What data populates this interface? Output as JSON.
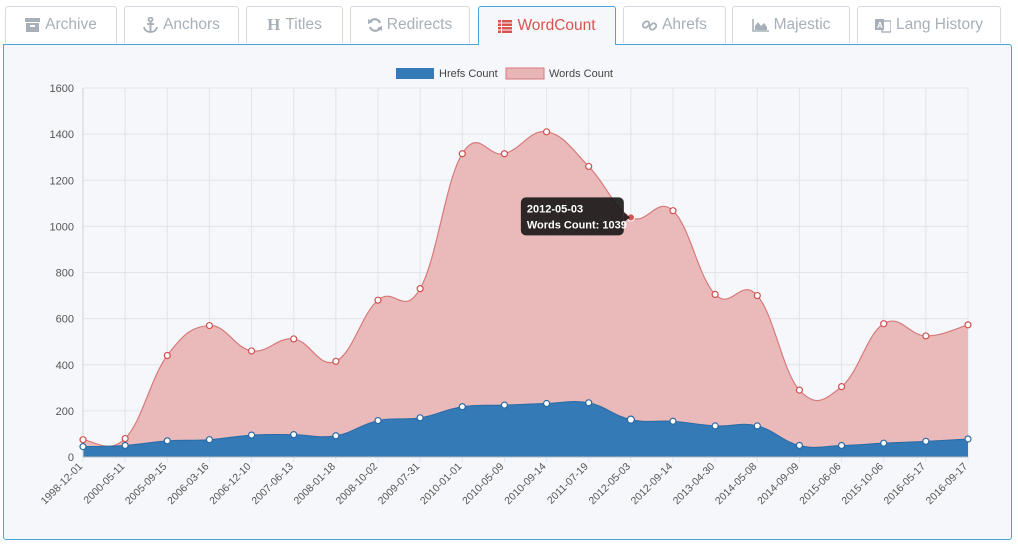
{
  "tabs": [
    {
      "label": "Archive",
      "icon": "archive-icon",
      "active": false
    },
    {
      "label": "Anchors",
      "icon": "anchor-icon",
      "active": false
    },
    {
      "label": "Titles",
      "icon": "heading-icon",
      "active": false
    },
    {
      "label": "Redirects",
      "icon": "refresh-icon",
      "active": false
    },
    {
      "label": "WordCount",
      "icon": "list-icon",
      "active": true
    },
    {
      "label": "Ahrefs",
      "icon": "link-icon",
      "active": false
    },
    {
      "label": "Majestic",
      "icon": "area-chart-icon",
      "active": false
    },
    {
      "label": "Lang History",
      "icon": "language-icon",
      "active": false
    }
  ],
  "colors": {
    "accent": "#d9534f",
    "border": "#4aa3d8",
    "hrefs": "#337ab7",
    "words_fill": "#e9b6b7",
    "words_line": "#d77a7a"
  },
  "chart_data": {
    "type": "area",
    "title": "",
    "xlabel": "",
    "ylabel": "",
    "ylim": [
      0,
      1600
    ],
    "yticks": [
      0,
      200,
      400,
      600,
      800,
      1000,
      1200,
      1400,
      1600
    ],
    "grid": true,
    "legend_position": "top-center",
    "categories": [
      "1998-12-01",
      "2000-05-11",
      "2005-09-15",
      "2006-03-16",
      "2006-12-10",
      "2007-06-13",
      "2008-01-18",
      "2008-10-02",
      "2009-07-31",
      "2010-01-01",
      "2010-05-09",
      "2010-09-14",
      "2011-07-19",
      "2012-05-03",
      "2012-09-14",
      "2013-04-30",
      "2014-05-08",
      "2014-09-09",
      "2015-06-06",
      "2015-10-06",
      "2016-05-17",
      "2016-09-17"
    ],
    "series": [
      {
        "name": "Hrefs Count",
        "values": [
          45,
          50,
          70,
          75,
          95,
          97,
          92,
          158,
          170,
          218,
          225,
          232,
          235,
          162,
          155,
          135,
          135,
          50,
          50,
          60,
          68,
          78
        ]
      },
      {
        "name": "Words Count",
        "values": [
          75,
          80,
          440,
          570,
          460,
          512,
          415,
          680,
          730,
          1315,
          1315,
          1410,
          1260,
          1039,
          1068,
          705,
          700,
          290,
          305,
          578,
          525,
          573
        ]
      }
    ],
    "tooltip": {
      "title": "2012-05-03",
      "label": "Words Count: 1039"
    }
  }
}
